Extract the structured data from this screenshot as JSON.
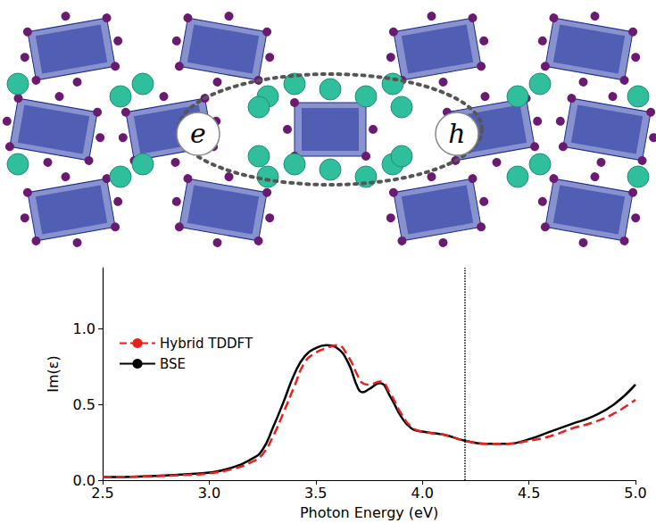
{
  "diagram": {
    "labels": [
      "e",
      "h"
    ]
  },
  "chart_data": {
    "type": "line",
    "x_label": "Photon Energy (eV)",
    "y_label": "Im(ε)",
    "x": [
      2.5,
      2.7,
      2.9,
      3.0,
      3.1,
      3.2,
      3.25,
      3.3,
      3.35,
      3.4,
      3.45,
      3.5,
      3.55,
      3.6,
      3.65,
      3.7,
      3.72,
      3.75,
      3.8,
      3.85,
      3.9,
      3.95,
      4.0,
      4.1,
      4.2,
      4.3,
      4.4,
      4.5,
      4.6,
      4.7,
      4.8,
      4.9,
      5.0
    ],
    "series": [
      {
        "name": "Hybrid TDDFT",
        "color": "#e8211d",
        "line_style": "dashed",
        "values": [
          0.02,
          0.025,
          0.035,
          0.045,
          0.07,
          0.12,
          0.17,
          0.29,
          0.45,
          0.62,
          0.78,
          0.84,
          0.87,
          0.89,
          0.82,
          0.68,
          0.64,
          0.63,
          0.65,
          0.57,
          0.44,
          0.35,
          0.32,
          0.3,
          0.26,
          0.24,
          0.24,
          0.26,
          0.29,
          0.34,
          0.38,
          0.44,
          0.53
        ]
      },
      {
        "name": "BSE",
        "color": "#000000",
        "line_style": "solid",
        "values": [
          0.02,
          0.025,
          0.04,
          0.05,
          0.08,
          0.14,
          0.2,
          0.35,
          0.52,
          0.7,
          0.82,
          0.87,
          0.89,
          0.87,
          0.78,
          0.6,
          0.58,
          0.6,
          0.64,
          0.55,
          0.42,
          0.34,
          0.32,
          0.3,
          0.26,
          0.24,
          0.24,
          0.27,
          0.32,
          0.37,
          0.42,
          0.5,
          0.63
        ]
      }
    ],
    "vline": 4.2,
    "xlim": [
      2.5,
      5.0
    ],
    "xticks": [
      {
        "value": 2.5,
        "label": "2.5"
      },
      {
        "value": 3.0,
        "label": "3.0"
      },
      {
        "value": 3.5,
        "label": "3.5"
      },
      {
        "value": 4.0,
        "label": "4.0"
      },
      {
        "value": 4.5,
        "label": "4.5"
      },
      {
        "value": 5.0,
        "label": "5.0"
      }
    ],
    "ylim": [
      0,
      1.4
    ],
    "yticks": [
      {
        "value": 0,
        "label": "0.0"
      },
      {
        "value": 0.5,
        "label": "0.5"
      },
      {
        "value": 1.0,
        "label": "1.0"
      }
    ],
    "grid": false,
    "legend": "upper left"
  }
}
